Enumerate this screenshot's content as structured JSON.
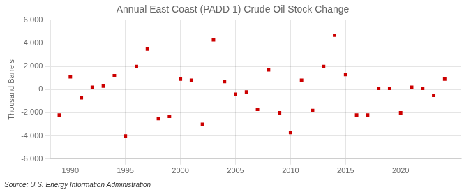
{
  "chart_data": {
    "type": "scatter",
    "title": "Annual East Coast (PADD 1) Crude Oil Stock Change",
    "y_label": "Thousand Barrels",
    "annotation": "Source: U.S. Energy Information Administration",
    "x": [
      1989,
      1990,
      1991,
      1992,
      1993,
      1994,
      1995,
      1996,
      1997,
      1998,
      1999,
      2000,
      2001,
      2002,
      2003,
      2004,
      2005,
      2006,
      2007,
      2008,
      2009,
      2010,
      2011,
      2012,
      2013,
      2014,
      2015,
      2016,
      2017,
      2018,
      2019,
      2020,
      2021,
      2022,
      2023,
      2024
    ],
    "values": [
      -2200,
      1100,
      -700,
      200,
      300,
      1200,
      -4000,
      2000,
      3500,
      -2500,
      -2300,
      900,
      800,
      -3000,
      4300,
      700,
      -400,
      -200,
      -1700,
      1700,
      -2000,
      -3700,
      800,
      -1800,
      2000,
      4700,
      1300,
      -2200,
      -2200,
      100,
      100,
      -2000,
      200,
      100,
      -500,
      900
    ],
    "color": "#cc0000",
    "marker": "square",
    "xlim": [
      1988.2,
      2025.5
    ],
    "xticks": [
      1990,
      1995,
      2000,
      2005,
      2010,
      2015,
      2020
    ],
    "ylim": [
      -6000,
      6000
    ],
    "yticks": [
      {
        "value": -6000,
        "label": "-6,000"
      },
      {
        "value": -4000,
        "label": "-4,000"
      },
      {
        "value": -2000,
        "label": "-2,000"
      },
      0,
      {
        "value": 2000,
        "label": "2,000"
      },
      {
        "value": 4000,
        "label": "4,000"
      },
      {
        "value": 6000,
        "label": "6,000"
      }
    ],
    "grid": true
  }
}
